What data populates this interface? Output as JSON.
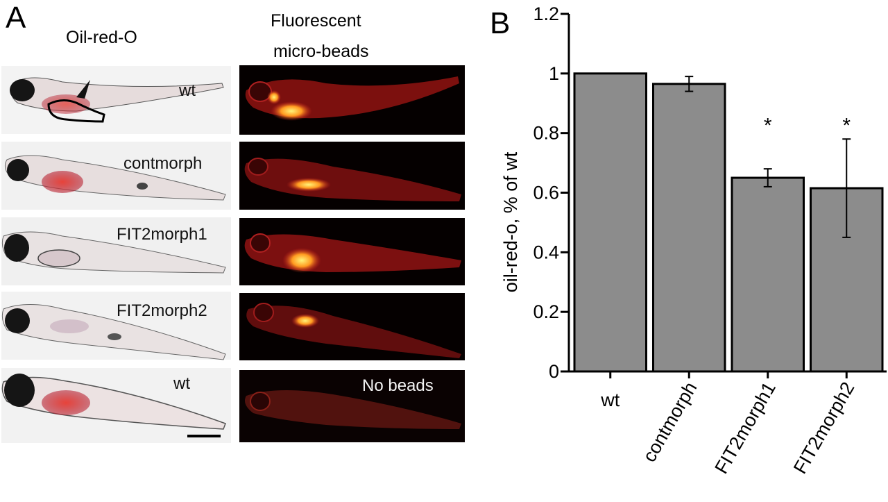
{
  "panel_a": {
    "letter": "A",
    "col_left_title": "Oil-red-O",
    "col_right_title": [
      "Fluorescent",
      "micro-beads"
    ],
    "rows": [
      {
        "label": "wt",
        "fluor_label": ""
      },
      {
        "label": "contmorph",
        "fluor_label": ""
      },
      {
        "label": "FIT2morph1",
        "fluor_label": ""
      },
      {
        "label": "FIT2morph2",
        "fluor_label": ""
      },
      {
        "label": "wt",
        "fluor_label": "No beads"
      }
    ]
  },
  "chart_data": {
    "type": "bar",
    "panel_letter": "B",
    "title": "",
    "xlabel": "",
    "ylabel": "oil-red-o, % of wt",
    "categories": [
      "wt",
      "contmorph",
      "FIT2morph1",
      "FIT2morph2"
    ],
    "values": [
      1.0,
      0.965,
      0.65,
      0.615
    ],
    "error_low": [
      null,
      0.94,
      0.62,
      0.45
    ],
    "error_high": [
      null,
      0.99,
      0.68,
      0.78
    ],
    "significance": [
      "",
      "",
      "*",
      "*"
    ],
    "ylim": [
      0,
      1.2
    ],
    "yticks": [
      "0",
      "0.2",
      "0.4",
      "0.6",
      "0.8",
      "1",
      "1.2"
    ],
    "bar_color": "#8c8c8c",
    "grid": false
  }
}
